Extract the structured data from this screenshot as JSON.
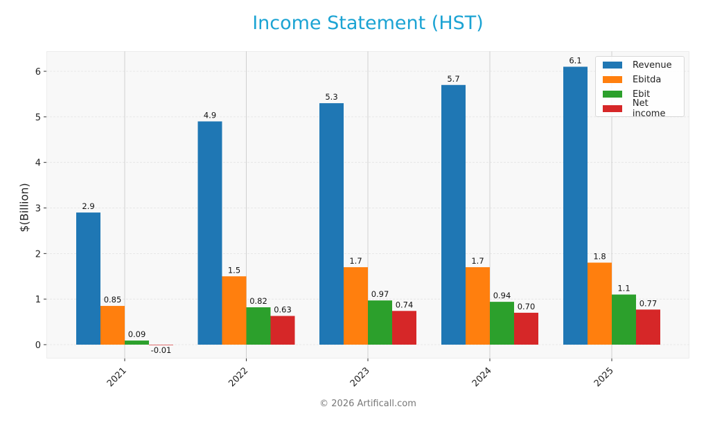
{
  "title": "Income Statement (HST)",
  "footer": "© 2026 Artificall.com",
  "colors": {
    "title": "#1ba3d3",
    "Revenue": "#1f77b4",
    "Ebitda": "#ff7f0e",
    "Ebit": "#2ca02c",
    "Net income": "#d62728"
  },
  "legend": [
    {
      "label": "Revenue",
      "color": "#1f77b4"
    },
    {
      "label": "Ebitda",
      "color": "#ff7f0e"
    },
    {
      "label": "Ebit",
      "color": "#2ca02c"
    },
    {
      "label": "Net income",
      "color": "#d62728"
    }
  ],
  "chart_data": {
    "type": "bar",
    "title": "Income Statement (HST)",
    "xlabel": "",
    "ylabel": "$(Billion)",
    "categories": [
      "2021",
      "2022",
      "2023",
      "2024",
      "2025"
    ],
    "series": [
      {
        "name": "Revenue",
        "values": [
          2.9,
          4.9,
          5.3,
          5.7,
          6.1
        ],
        "labels": [
          "2.9",
          "4.9",
          "5.3",
          "5.7",
          "6.1"
        ]
      },
      {
        "name": "Ebitda",
        "values": [
          0.85,
          1.5,
          1.7,
          1.7,
          1.8
        ],
        "labels": [
          "0.85",
          "1.5",
          "1.7",
          "1.7",
          "1.8"
        ]
      },
      {
        "name": "Ebit",
        "values": [
          0.09,
          0.82,
          0.97,
          0.94,
          1.1
        ],
        "labels": [
          "0.09",
          "0.82",
          "0.97",
          "0.94",
          "1.1"
        ]
      },
      {
        "name": "Net income",
        "values": [
          -0.01,
          0.63,
          0.74,
          0.7,
          0.77
        ],
        "labels": [
          "-0.01",
          "0.63",
          "0.74",
          "0.70",
          "0.77"
        ]
      }
    ],
    "yticks": [
      0,
      1,
      2,
      3,
      4,
      5,
      6
    ],
    "ylim": [
      -0.3,
      6.45
    ],
    "grid": true,
    "legend_position": "upper right",
    "x_tick_rotation": 45
  }
}
